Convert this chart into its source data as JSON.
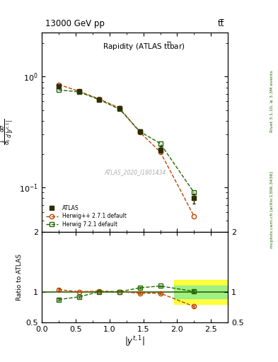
{
  "title_top": "13000 GeV pp",
  "title_right": "tt̅",
  "plot_title": "Rapidity (ATLAS t̅tbar)",
  "xlabel": "$|y^{t,1}|$",
  "ylabel_ratio": "Ratio to ATLAS",
  "watermark": "ATLAS_2020_I1801434",
  "right_label": "mcplots.cern.ch [arXiv:1306.3436]",
  "right_label2": "Rivet 3.1.10, ≥ 3.3M events",
  "atlas_x": [
    0.25,
    0.55,
    0.85,
    1.15,
    1.45,
    1.75,
    2.25
  ],
  "atlas_y": [
    0.82,
    0.74,
    0.62,
    0.52,
    0.32,
    0.22,
    0.08
  ],
  "atlas_yerr": [
    0.03,
    0.025,
    0.02,
    0.02,
    0.015,
    0.015,
    0.008
  ],
  "herwig271_x": [
    0.25,
    0.55,
    0.85,
    1.15,
    1.45,
    1.75,
    2.25
  ],
  "herwig271_y": [
    0.85,
    0.74,
    0.63,
    0.52,
    0.315,
    0.21,
    0.055
  ],
  "herwig721_x": [
    0.25,
    0.55,
    0.85,
    1.15,
    1.45,
    1.75,
    2.25
  ],
  "herwig721_y": [
    0.76,
    0.73,
    0.62,
    0.51,
    0.32,
    0.25,
    0.09
  ],
  "ratio_herwig271_x": [
    0.25,
    0.55,
    0.85,
    1.15,
    1.45,
    1.75,
    2.25
  ],
  "ratio_herwig271_y": [
    1.04,
    1.005,
    1.015,
    1.005,
    0.98,
    0.98,
    0.76
  ],
  "ratio_herwig271_yerr": [
    0.015,
    0.01,
    0.01,
    0.01,
    0.01,
    0.01,
    0.02
  ],
  "ratio_herwig721_x": [
    0.25,
    0.55,
    0.85,
    1.15,
    1.45,
    1.75,
    2.25
  ],
  "ratio_herwig721_y": [
    0.875,
    0.92,
    1.005,
    1.005,
    1.07,
    1.1,
    1.01
  ],
  "ratio_herwig721_yerr": [
    0.015,
    0.01,
    0.01,
    0.01,
    0.01,
    0.01,
    0.02
  ],
  "band_yellow_y1": 0.8,
  "band_yellow_y2": 1.2,
  "band_green_y1": 0.9,
  "band_green_y2": 1.1,
  "band_x_start": 1.95,
  "band_x_end": 2.75,
  "atlas_color": "#2d2d00",
  "herwig271_color": "#bb4400",
  "herwig721_color": "#226600",
  "xlim": [
    0.0,
    2.75
  ],
  "ylim_main": [
    0.04,
    2.5
  ],
  "ylim_ratio": [
    0.5,
    2.0
  ]
}
